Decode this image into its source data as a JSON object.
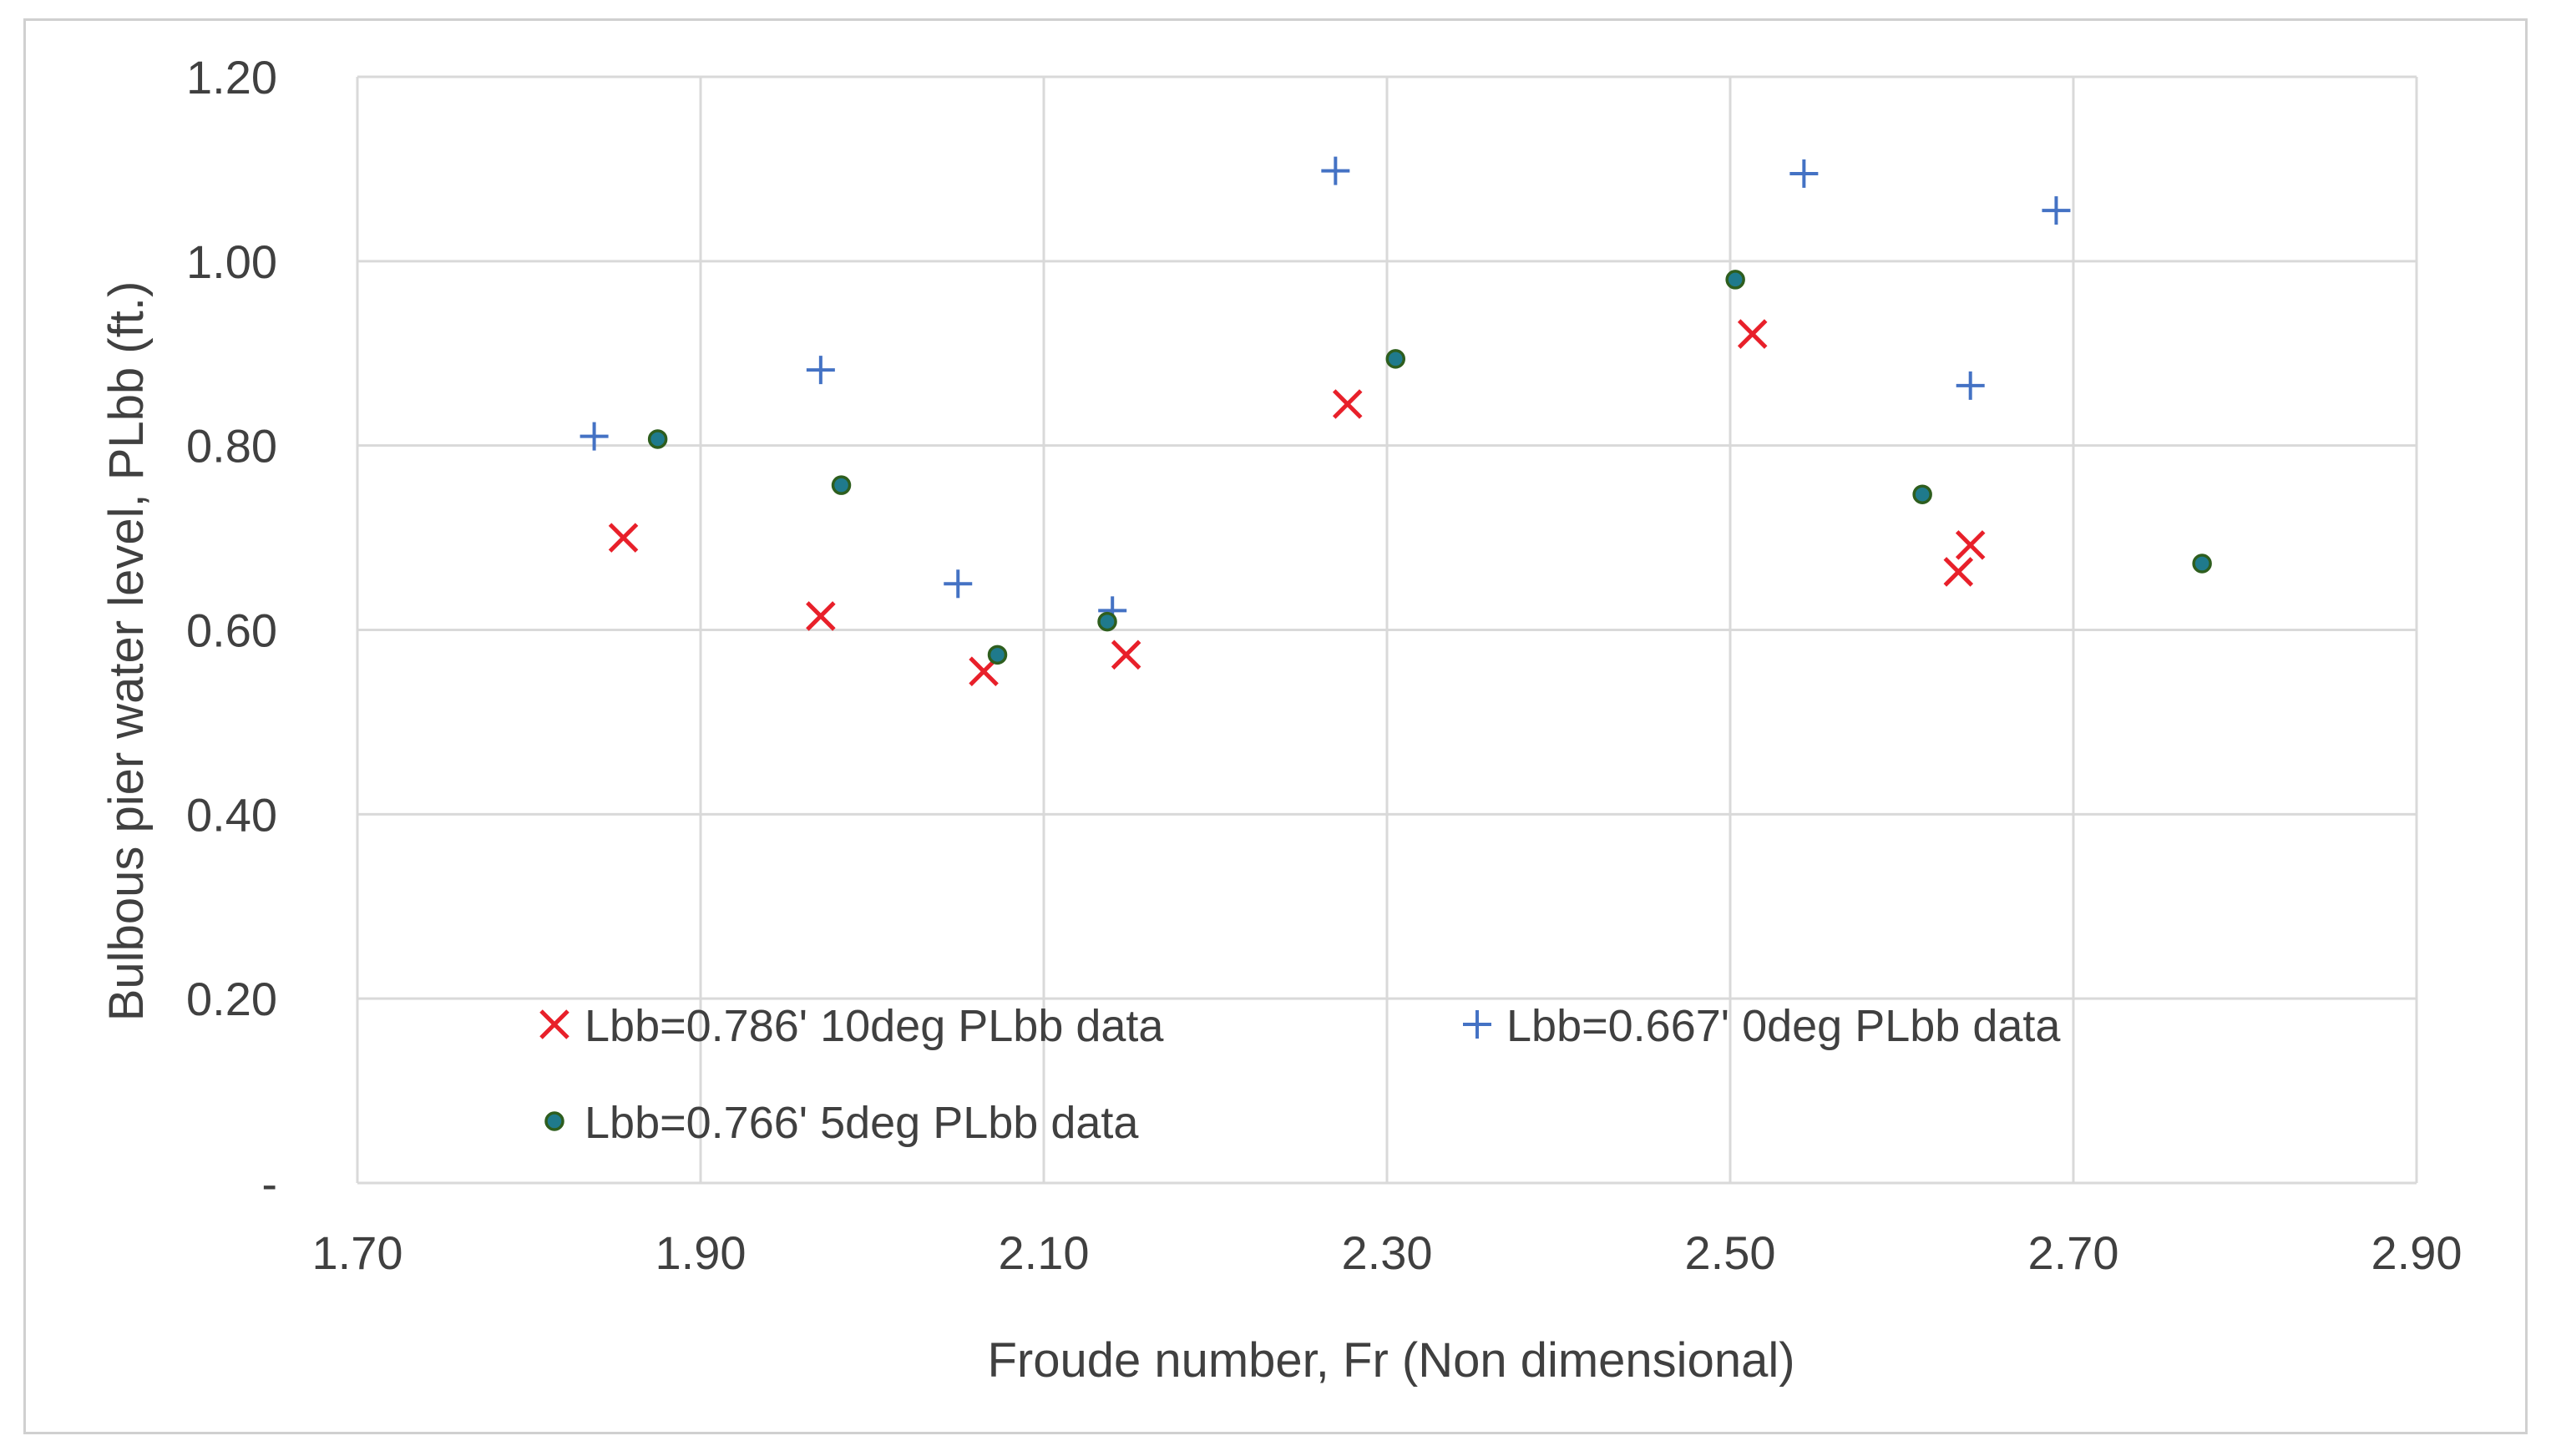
{
  "chart_data": {
    "type": "scatter",
    "title": "",
    "xlabel": "Froude number, Fr (Non dimensional)",
    "ylabel": "Bulbous pier water level, PLbb (ft.)",
    "xlim": [
      1.7,
      2.9
    ],
    "ylim": [
      0.0,
      1.2
    ],
    "x_ticks": [
      1.7,
      1.9,
      2.1,
      2.3,
      2.5,
      2.7,
      2.9
    ],
    "x_tick_labels": [
      "1.70",
      "1.90",
      "2.10",
      "2.30",
      "2.50",
      "2.70",
      "2.90"
    ],
    "y_ticks": [
      0.0,
      0.2,
      0.4,
      0.6,
      0.8,
      1.0,
      1.2
    ],
    "y_tick_labels": [
      "-",
      "0.20",
      "0.40",
      "0.60",
      "0.80",
      "1.00",
      "1.20"
    ],
    "grid": true,
    "legend_position": "inside-bottom-left",
    "series": [
      {
        "name": "Lbb=0.786' 10deg PLbb data",
        "marker": "x",
        "color": "#e8202a",
        "points": [
          {
            "x": 1.855,
            "y": 0.7
          },
          {
            "x": 1.97,
            "y": 0.615
          },
          {
            "x": 2.065,
            "y": 0.555
          },
          {
            "x": 2.148,
            "y": 0.573
          },
          {
            "x": 2.277,
            "y": 0.845
          },
          {
            "x": 2.513,
            "y": 0.921
          },
          {
            "x": 2.633,
            "y": 0.663
          },
          {
            "x": 2.64,
            "y": 0.692
          }
        ]
      },
      {
        "name": "Lbb=0.667' 0deg PLbb data",
        "marker": "plus",
        "color": "#4472c4",
        "points": [
          {
            "x": 1.838,
            "y": 0.81
          },
          {
            "x": 1.97,
            "y": 0.882
          },
          {
            "x": 2.05,
            "y": 0.65
          },
          {
            "x": 2.14,
            "y": 0.621
          },
          {
            "x": 2.27,
            "y": 1.098
          },
          {
            "x": 2.543,
            "y": 1.095
          },
          {
            "x": 2.64,
            "y": 0.865
          },
          {
            "x": 2.69,
            "y": 1.055
          }
        ]
      },
      {
        "name": "Lbb=0.766' 5deg PLbb data",
        "marker": "circle",
        "color": "#1f7a8c",
        "edge_color": "#2e5e1e",
        "points": [
          {
            "x": 1.875,
            "y": 0.807
          },
          {
            "x": 1.982,
            "y": 0.757
          },
          {
            "x": 2.073,
            "y": 0.573
          },
          {
            "x": 2.137,
            "y": 0.609
          },
          {
            "x": 2.305,
            "y": 0.894
          },
          {
            "x": 2.503,
            "y": 0.98
          },
          {
            "x": 2.612,
            "y": 0.747
          },
          {
            "x": 2.775,
            "y": 0.672
          }
        ]
      }
    ]
  }
}
